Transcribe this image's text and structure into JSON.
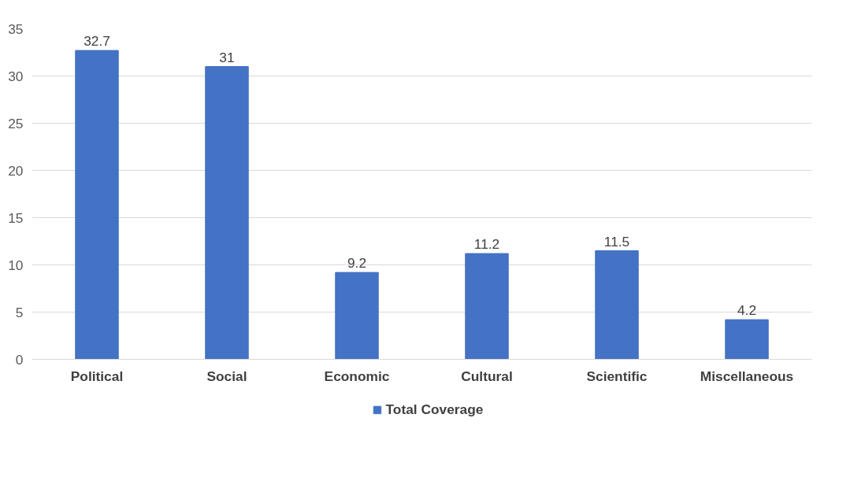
{
  "chart_data": {
    "type": "bar",
    "categories": [
      "Political",
      "Social",
      "Economic",
      "Cultural",
      "Scientific",
      "Miscellaneous"
    ],
    "series": [
      {
        "name": "Total Coverage",
        "color": "#4472c4",
        "values": [
          32.7,
          31,
          9.2,
          11.2,
          11.5,
          4.2
        ]
      }
    ],
    "ylim": [
      0,
      35
    ],
    "yticks": [
      0,
      5,
      10,
      15,
      20,
      25,
      30,
      35
    ],
    "grid": "y",
    "legend": "bottom",
    "data_labels": true
  }
}
